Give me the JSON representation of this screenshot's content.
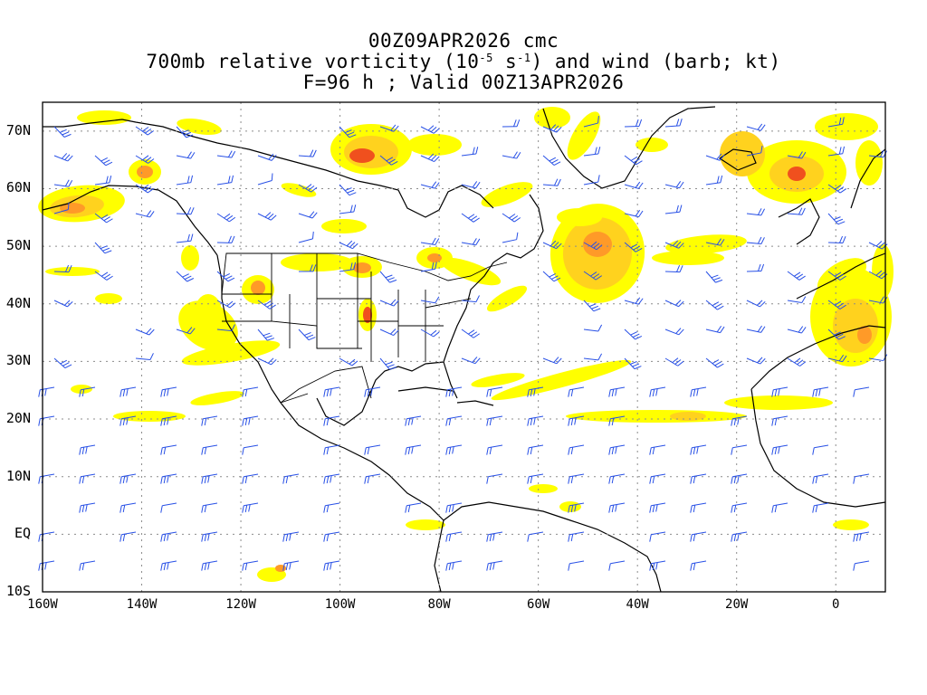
{
  "title": {
    "line1": "00Z09APR2026 cmc",
    "line2_pre": "700mb relative vorticity (10",
    "line2_sup1": "-5",
    "line2_mid": " s",
    "line2_sup2": "-1",
    "line2_post": ") and wind (barb; kt)",
    "line3": "F=96 h ; Valid 00Z13APR2026"
  },
  "map": {
    "lon_range": [
      -160,
      10
    ],
    "lat_range": [
      -10,
      75
    ],
    "lat_ticks": [
      {
        "lat": 70,
        "label": "70N"
      },
      {
        "lat": 60,
        "label": "60N"
      },
      {
        "lat": 50,
        "label": "50N"
      },
      {
        "lat": 40,
        "label": "40N"
      },
      {
        "lat": 30,
        "label": "30N"
      },
      {
        "lat": 20,
        "label": "20N"
      },
      {
        "lat": 10,
        "label": "10N"
      },
      {
        "lat": 0,
        "label": "EQ"
      },
      {
        "lat": -10,
        "label": "10S"
      }
    ],
    "lon_ticks": [
      {
        "lon": -160,
        "label": "160W"
      },
      {
        "lon": -140,
        "label": "140W"
      },
      {
        "lon": -120,
        "label": "120W"
      },
      {
        "lon": -100,
        "label": "100W"
      },
      {
        "lon": -80,
        "label": "80W"
      },
      {
        "lon": -60,
        "label": "60W"
      },
      {
        "lon": -40,
        "label": "40W"
      },
      {
        "lon": -20,
        "label": "20W"
      },
      {
        "lon": 0,
        "label": "0"
      }
    ],
    "colors": {
      "level1": "#ffff00",
      "level2": "#ffd21e",
      "level3": "#ff9a28",
      "level4": "#f0501e",
      "barb": "#2850e6",
      "coast": "#000000",
      "grid": "#8c8c8c"
    }
  }
}
